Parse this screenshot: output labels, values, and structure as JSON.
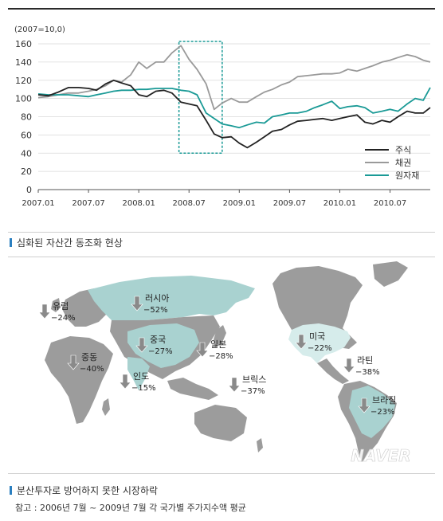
{
  "chart_data": {
    "type": "line",
    "unit_label": "(2007=10,0)",
    "x_ticks": [
      "2007.01",
      "2007.07",
      "2008.01",
      "2008.07",
      "2009.01",
      "2009.07",
      "2010.01",
      "2010.07"
    ],
    "y_ticks": [
      0,
      20,
      40,
      60,
      80,
      100,
      120,
      140,
      160
    ],
    "ylim": [
      0,
      160
    ],
    "xlim": [
      2007.0,
      2010.9
    ],
    "grid": true,
    "legend_position": "bottom-right",
    "series": [
      {
        "name": "주식",
        "color": "#222222",
        "points": [
          [
            2007.0,
            104
          ],
          [
            2007.1,
            103
          ],
          [
            2007.2,
            107
          ],
          [
            2007.3,
            112
          ],
          [
            2007.4,
            112
          ],
          [
            2007.5,
            111
          ],
          [
            2007.58,
            109
          ],
          [
            2007.67,
            116
          ],
          [
            2007.75,
            120
          ],
          [
            2007.83,
            117
          ],
          [
            2007.92,
            114
          ],
          [
            2008.0,
            104
          ],
          [
            2008.08,
            102
          ],
          [
            2008.17,
            108
          ],
          [
            2008.25,
            109
          ],
          [
            2008.33,
            106
          ],
          [
            2008.42,
            96
          ],
          [
            2008.5,
            94
          ],
          [
            2008.58,
            92
          ],
          [
            2008.67,
            76
          ],
          [
            2008.75,
            61
          ],
          [
            2008.83,
            57
          ],
          [
            2008.92,
            58
          ],
          [
            2009.0,
            51
          ],
          [
            2009.08,
            46
          ],
          [
            2009.17,
            52
          ],
          [
            2009.25,
            58
          ],
          [
            2009.33,
            64
          ],
          [
            2009.42,
            66
          ],
          [
            2009.5,
            71
          ],
          [
            2009.58,
            75
          ],
          [
            2009.67,
            76
          ],
          [
            2009.75,
            77
          ],
          [
            2009.83,
            78
          ],
          [
            2009.92,
            76
          ],
          [
            2010.0,
            78
          ],
          [
            2010.08,
            80
          ],
          [
            2010.17,
            82
          ],
          [
            2010.25,
            74
          ],
          [
            2010.33,
            72
          ],
          [
            2010.42,
            76
          ],
          [
            2010.5,
            74
          ],
          [
            2010.58,
            80
          ],
          [
            2010.67,
            86
          ],
          [
            2010.75,
            84
          ],
          [
            2010.83,
            84
          ],
          [
            2010.9,
            90
          ]
        ]
      },
      {
        "name": "채권",
        "color": "#9a9a9a",
        "points": [
          [
            2007.0,
            101
          ],
          [
            2007.1,
            102
          ],
          [
            2007.2,
            104
          ],
          [
            2007.3,
            106
          ],
          [
            2007.4,
            106
          ],
          [
            2007.5,
            108
          ],
          [
            2007.58,
            110
          ],
          [
            2007.67,
            114
          ],
          [
            2007.75,
            120
          ],
          [
            2007.83,
            118
          ],
          [
            2007.92,
            126
          ],
          [
            2008.0,
            140
          ],
          [
            2008.08,
            133
          ],
          [
            2008.17,
            140
          ],
          [
            2008.25,
            140
          ],
          [
            2008.33,
            150
          ],
          [
            2008.42,
            158
          ],
          [
            2008.5,
            143
          ],
          [
            2008.58,
            132
          ],
          [
            2008.67,
            116
          ],
          [
            2008.75,
            88
          ],
          [
            2008.83,
            95
          ],
          [
            2008.92,
            100
          ],
          [
            2009.0,
            96
          ],
          [
            2009.08,
            96
          ],
          [
            2009.17,
            102
          ],
          [
            2009.25,
            107
          ],
          [
            2009.33,
            110
          ],
          [
            2009.42,
            115
          ],
          [
            2009.5,
            118
          ],
          [
            2009.58,
            124
          ],
          [
            2009.67,
            125
          ],
          [
            2009.75,
            126
          ],
          [
            2009.83,
            127
          ],
          [
            2009.92,
            127
          ],
          [
            2010.0,
            128
          ],
          [
            2010.08,
            132
          ],
          [
            2010.17,
            130
          ],
          [
            2010.25,
            133
          ],
          [
            2010.33,
            136
          ],
          [
            2010.42,
            140
          ],
          [
            2010.5,
            142
          ],
          [
            2010.58,
            145
          ],
          [
            2010.67,
            148
          ],
          [
            2010.75,
            146
          ],
          [
            2010.83,
            142
          ],
          [
            2010.9,
            140
          ]
        ]
      },
      {
        "name": "원자재",
        "color": "#1a9a96",
        "points": [
          [
            2007.0,
            105
          ],
          [
            2007.1,
            104
          ],
          [
            2007.2,
            104
          ],
          [
            2007.3,
            104
          ],
          [
            2007.4,
            103
          ],
          [
            2007.5,
            102
          ],
          [
            2007.58,
            104
          ],
          [
            2007.67,
            106
          ],
          [
            2007.75,
            108
          ],
          [
            2007.83,
            109
          ],
          [
            2007.92,
            109
          ],
          [
            2008.0,
            110
          ],
          [
            2008.08,
            110
          ],
          [
            2008.17,
            111
          ],
          [
            2008.25,
            111
          ],
          [
            2008.33,
            111
          ],
          [
            2008.42,
            109
          ],
          [
            2008.5,
            108
          ],
          [
            2008.58,
            104
          ],
          [
            2008.67,
            84
          ],
          [
            2008.75,
            78
          ],
          [
            2008.83,
            72
          ],
          [
            2008.92,
            70
          ],
          [
            2009.0,
            68
          ],
          [
            2009.08,
            71
          ],
          [
            2009.17,
            74
          ],
          [
            2009.25,
            73
          ],
          [
            2009.33,
            80
          ],
          [
            2009.42,
            82
          ],
          [
            2009.5,
            84
          ],
          [
            2009.58,
            84
          ],
          [
            2009.67,
            86
          ],
          [
            2009.75,
            90
          ],
          [
            2009.83,
            93
          ],
          [
            2009.92,
            97
          ],
          [
            2010.0,
            89
          ],
          [
            2010.08,
            91
          ],
          [
            2010.17,
            92
          ],
          [
            2010.25,
            90
          ],
          [
            2010.33,
            84
          ],
          [
            2010.42,
            86
          ],
          [
            2010.5,
            88
          ],
          [
            2010.58,
            86
          ],
          [
            2010.67,
            94
          ],
          [
            2010.75,
            100
          ],
          [
            2010.83,
            98
          ],
          [
            2010.9,
            112
          ]
        ]
      }
    ],
    "highlight_range": [
      2008.4,
      2008.83
    ]
  },
  "captions": {
    "chart": "심화된 자산간 동조화 현상",
    "map": "분산투자로 방어하지 못한 시장하락",
    "note": "참고 : 2006년 7월 ~ 2009년 7월 각 국가별 주가지수액 평균"
  },
  "map": {
    "watermark": "NAVER",
    "land_color": "#9c9c9c",
    "highlight_color": "#a9d2d0",
    "light_highlight_color": "#d6eceb",
    "arrow_icon": "down-arrow-icon",
    "markets": [
      {
        "name": "유럽",
        "value": "−24%"
      },
      {
        "name": "러시아",
        "value": "−52%"
      },
      {
        "name": "중국",
        "value": "−27%"
      },
      {
        "name": "일본",
        "value": "−28%"
      },
      {
        "name": "중동",
        "value": "−40%"
      },
      {
        "name": "인도",
        "value": "−15%"
      },
      {
        "name": "브릭스",
        "value": "−37%"
      },
      {
        "name": "미국",
        "value": "−22%"
      },
      {
        "name": "라틴",
        "value": "−38%"
      },
      {
        "name": "브라질",
        "value": "−23%"
      }
    ]
  }
}
